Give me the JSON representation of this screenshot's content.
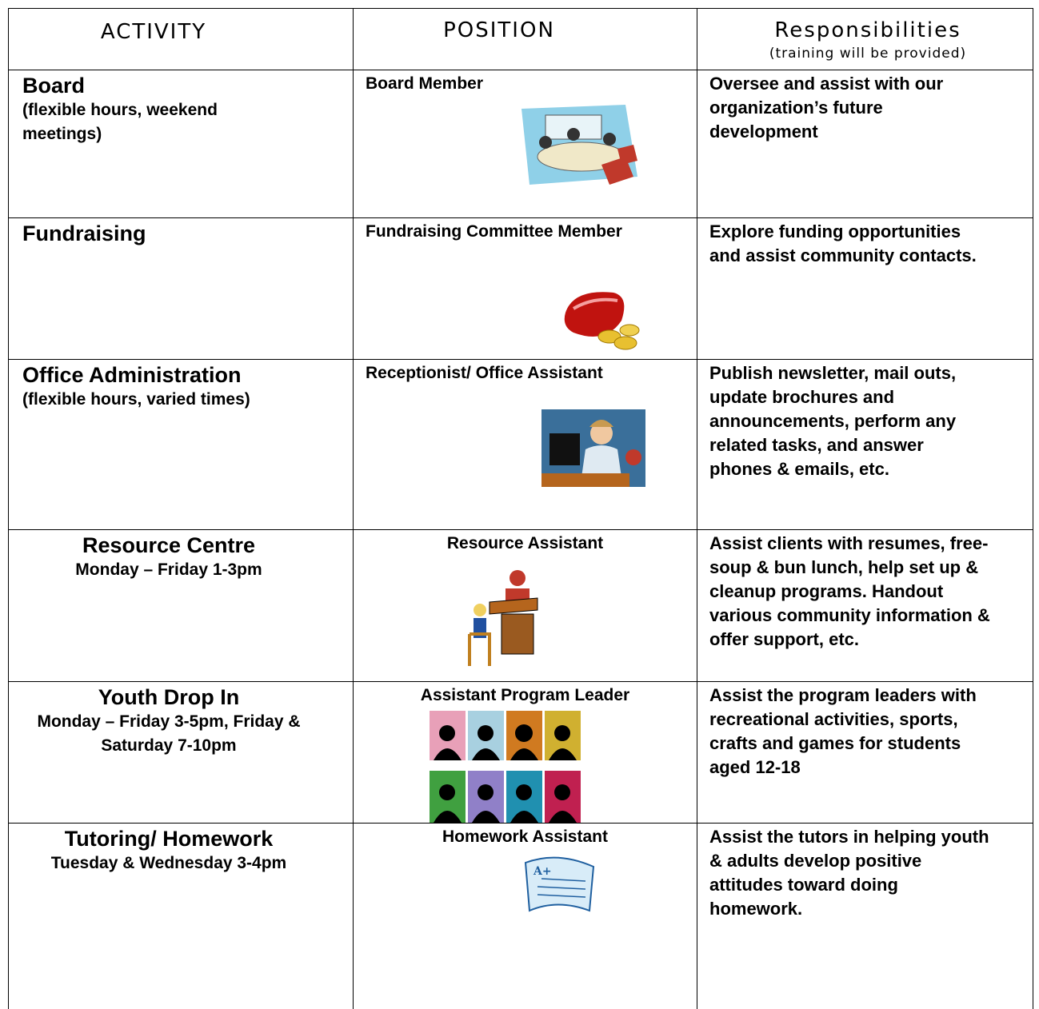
{
  "header": {
    "activity": "ACTIVITY",
    "position": "POSITION",
    "responsibilities": "Responsibilities",
    "responsibilities_note": "(training will be provided)"
  },
  "rows": [
    {
      "activity": "Board",
      "activity_note": "(flexible hours, weekend meetings)",
      "position": "Board Member",
      "responsibilities": "Oversee and assist with our organization’s future development"
    },
    {
      "activity": "Fundraising",
      "position": "Fundraising Committee Member",
      "responsibilities": "Explore funding opportunities and assist community contacts."
    },
    {
      "activity": "Office Administration",
      "activity_note": "(flexible hours, varied times)",
      "position": "Receptionist/ Office Assistant",
      "responsibilities": "Publish newsletter, mail outs, update brochures and announcements, perform any related tasks, and answer phones & emails, etc."
    },
    {
      "activity": "Resource Centre",
      "activity_note": "Monday – Friday 1-3pm",
      "position": "Resource Assistant",
      "responsibilities": "Assist clients with resumes, free-soup & bun lunch, help set up & cleanup programs. Handout various community information & offer support, etc."
    },
    {
      "activity": "Youth Drop In",
      "activity_note": "Monday – Friday 3-5pm, Friday & Saturday 7-10pm",
      "position": "Assistant Program Leader",
      "responsibilities": "Assist the program leaders with recreational activities, sports, crafts and games for students aged 12-18"
    },
    {
      "activity": "Tutoring/ Homework",
      "activity_note": "Tuesday & Wednesday 3-4pm",
      "position": "Homework Assistant",
      "responsibilities": "Assist the tutors in helping youth & adults develop positive attitudes toward doing homework."
    }
  ]
}
